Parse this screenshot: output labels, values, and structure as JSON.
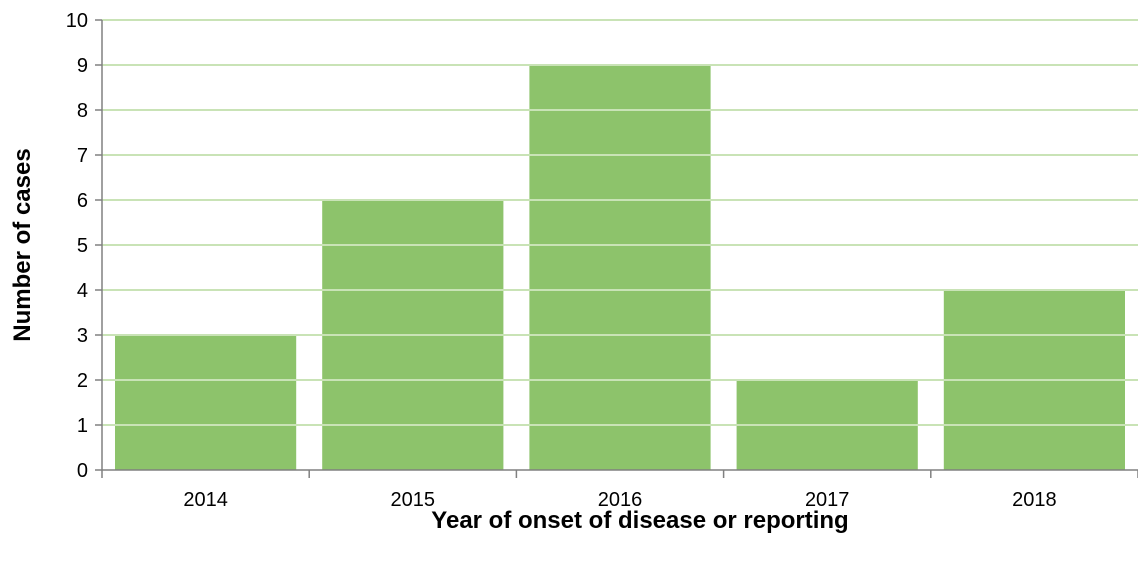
{
  "chart_data": {
    "type": "bar",
    "categories": [
      "2014",
      "2015",
      "2016",
      "2017",
      "2018"
    ],
    "values": [
      3,
      6,
      9,
      2,
      4
    ],
    "title": "",
    "xlabel": "Year of onset of disease or reporting",
    "ylabel": "Number of cases",
    "ylim": [
      0,
      10
    ],
    "yticks": [
      "0",
      "1",
      "2",
      "3",
      "4",
      "5",
      "6",
      "7",
      "8",
      "9",
      "10"
    ],
    "grid": "horizontal gridlines visible over bars",
    "legend": "none",
    "colors": {
      "bar": "#8dc36b",
      "gridline": "#c9e3b6",
      "axis": "#808080",
      "text": "#000000"
    }
  }
}
